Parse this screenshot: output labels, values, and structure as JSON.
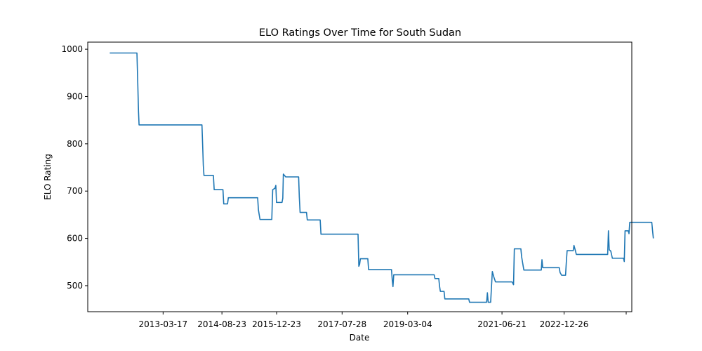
{
  "chart_data": {
    "type": "line",
    "title": "ELO Ratings Over Time for South Sudan",
    "xlabel": "Date",
    "ylabel": "ELO Rating",
    "x_tick_labels": [
      "2013-03-17",
      "2014-08-23",
      "2015-12-23",
      "2017-07-28",
      "2019-03-04",
      "2021-06-21",
      "2022-12-26"
    ],
    "y_ticks": [
      500,
      600,
      700,
      800,
      900,
      1000
    ],
    "xlim": [
      "2011-05-16",
      "2024-08-20"
    ],
    "ylim": [
      445,
      1015
    ],
    "grid": false,
    "series": [
      {
        "color": "#1f77b4",
        "points": [
          [
            "2011-11-28",
            992
          ],
          [
            "2012-07-27",
            992
          ],
          [
            "2012-08-03",
            932
          ],
          [
            "2012-08-10",
            868
          ],
          [
            "2012-08-15",
            840
          ],
          [
            "2014-02-26",
            840
          ],
          [
            "2014-03-05",
            792
          ],
          [
            "2014-03-10",
            755
          ],
          [
            "2014-03-16",
            733
          ],
          [
            "2014-06-08",
            733
          ],
          [
            "2014-06-15",
            703
          ],
          [
            "2014-09-01",
            703
          ],
          [
            "2014-09-08",
            673
          ],
          [
            "2014-10-12",
            673
          ],
          [
            "2014-10-19",
            686
          ],
          [
            "2015-07-07",
            686
          ],
          [
            "2015-07-14",
            660
          ],
          [
            "2015-07-28",
            640
          ],
          [
            "2015-11-10",
            640
          ],
          [
            "2015-11-18",
            703
          ],
          [
            "2015-12-08",
            706
          ],
          [
            "2015-12-16",
            712
          ],
          [
            "2015-12-22",
            676
          ],
          [
            "2016-02-09",
            676
          ],
          [
            "2016-02-16",
            685
          ],
          [
            "2016-02-21",
            736
          ],
          [
            "2016-03-13",
            730
          ],
          [
            "2016-07-06",
            730
          ],
          [
            "2016-07-12",
            688
          ],
          [
            "2016-07-19",
            655
          ],
          [
            "2016-09-14",
            655
          ],
          [
            "2016-09-21",
            639
          ],
          [
            "2017-01-14",
            639
          ],
          [
            "2017-01-21",
            609
          ],
          [
            "2017-12-17",
            609
          ],
          [
            "2017-12-24",
            541
          ],
          [
            "2017-12-31",
            545
          ],
          [
            "2018-01-07",
            557
          ],
          [
            "2018-03-14",
            557
          ],
          [
            "2018-03-21",
            534
          ],
          [
            "2018-10-11",
            534
          ],
          [
            "2018-10-18",
            511
          ],
          [
            "2018-10-24",
            498
          ],
          [
            "2018-10-31",
            523
          ],
          [
            "2019-10-26",
            523
          ],
          [
            "2019-11-02",
            515
          ],
          [
            "2019-12-06",
            515
          ],
          [
            "2019-12-13",
            499
          ],
          [
            "2019-12-20",
            488
          ],
          [
            "2020-01-22",
            488
          ],
          [
            "2020-01-29",
            472
          ],
          [
            "2020-08-29",
            472
          ],
          [
            "2020-09-05",
            465
          ],
          [
            "2021-02-04",
            465
          ],
          [
            "2021-02-11",
            485
          ],
          [
            "2021-02-18",
            465
          ],
          [
            "2021-03-12",
            465
          ],
          [
            "2021-03-20",
            500
          ],
          [
            "2021-03-27",
            530
          ],
          [
            "2021-04-10",
            518
          ],
          [
            "2021-04-24",
            508
          ],
          [
            "2021-09-19",
            508
          ],
          [
            "2021-10-02",
            502
          ],
          [
            "2021-10-09",
            578
          ],
          [
            "2021-12-06",
            578
          ],
          [
            "2021-12-13",
            561
          ],
          [
            "2021-12-27",
            541
          ],
          [
            "2022-01-02",
            533
          ],
          [
            "2022-06-06",
            533
          ],
          [
            "2022-06-12",
            555
          ],
          [
            "2022-06-19",
            538
          ],
          [
            "2022-08-26",
            538
          ],
          [
            "2022-11-13",
            538
          ],
          [
            "2022-11-20",
            528
          ],
          [
            "2022-12-04",
            522
          ],
          [
            "2023-01-08",
            522
          ],
          [
            "2023-01-15",
            550
          ],
          [
            "2023-01-22",
            574
          ],
          [
            "2023-03-17",
            574
          ],
          [
            "2023-03-24",
            585
          ],
          [
            "2023-04-07",
            573
          ],
          [
            "2023-04-14",
            566
          ],
          [
            "2024-01-18",
            566
          ],
          [
            "2024-01-25",
            616
          ],
          [
            "2024-02-01",
            576
          ],
          [
            "2024-02-15",
            573
          ],
          [
            "2024-02-29",
            558
          ],
          [
            "2024-06-07",
            558
          ],
          [
            "2024-06-14",
            551
          ],
          [
            "2024-06-21",
            616
          ],
          [
            "2024-07-19",
            616
          ],
          [
            "2024-07-26",
            610
          ],
          [
            "2024-08-02",
            634
          ],
          [
            "2025-02-14",
            634
          ],
          [
            "2025-02-21",
            616
          ],
          [
            "2025-02-28",
            600
          ]
        ]
      }
    ]
  }
}
